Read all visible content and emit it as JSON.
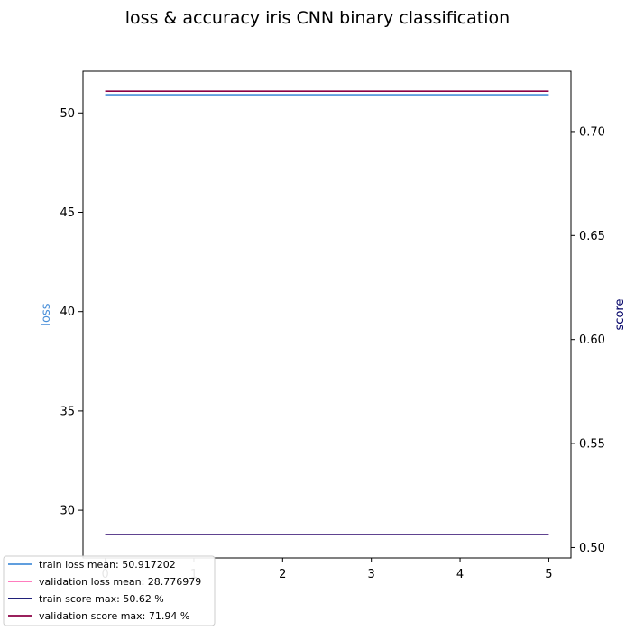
{
  "chart_data": {
    "type": "line",
    "title": "loss & accuracy iris CNN binary classification",
    "xlabel": "",
    "ylabel_left": "loss",
    "ylabel_right": "score",
    "x": [
      0,
      1,
      2,
      3,
      4,
      5
    ],
    "xlim": [
      -0.25,
      5.25
    ],
    "ylim_left": [
      27.6,
      52.1
    ],
    "ylim_right": [
      0.495,
      0.729
    ],
    "xticks": [
      "0",
      "1",
      "2",
      "3",
      "4",
      "5"
    ],
    "yticks_left": [
      "30",
      "35",
      "40",
      "45",
      "50"
    ],
    "yticks_right": [
      "0.50",
      "0.55",
      "0.60",
      "0.65",
      "0.70"
    ],
    "grid": false,
    "legend_position": "lower-left",
    "series": [
      {
        "name": "train loss mean: 50.917202",
        "axis": "left",
        "color": "#4a90d9",
        "values": [
          50.917202,
          50.917202,
          50.917202,
          50.917202,
          50.917202,
          50.917202
        ]
      },
      {
        "name": "validation loss mean: 28.776979",
        "axis": "left",
        "color": "#ff69b4",
        "values": [
          28.776979,
          28.776979,
          28.776979,
          28.776979,
          28.776979,
          28.776979
        ]
      },
      {
        "name": "train score max: 50.62 %",
        "axis": "right",
        "color": "#000066",
        "values": [
          0.5062,
          0.5062,
          0.5062,
          0.5062,
          0.5062,
          0.5062
        ]
      },
      {
        "name": "validation score max: 71.94 %",
        "axis": "right",
        "color": "#8b0045",
        "values": [
          0.7194,
          0.7194,
          0.7194,
          0.7194,
          0.7194,
          0.7194
        ]
      }
    ],
    "colors": {
      "loss_label": "#4a90d9",
      "score_label": "#000066",
      "axes": "#000000",
      "legend_border": "#cccccc"
    }
  }
}
